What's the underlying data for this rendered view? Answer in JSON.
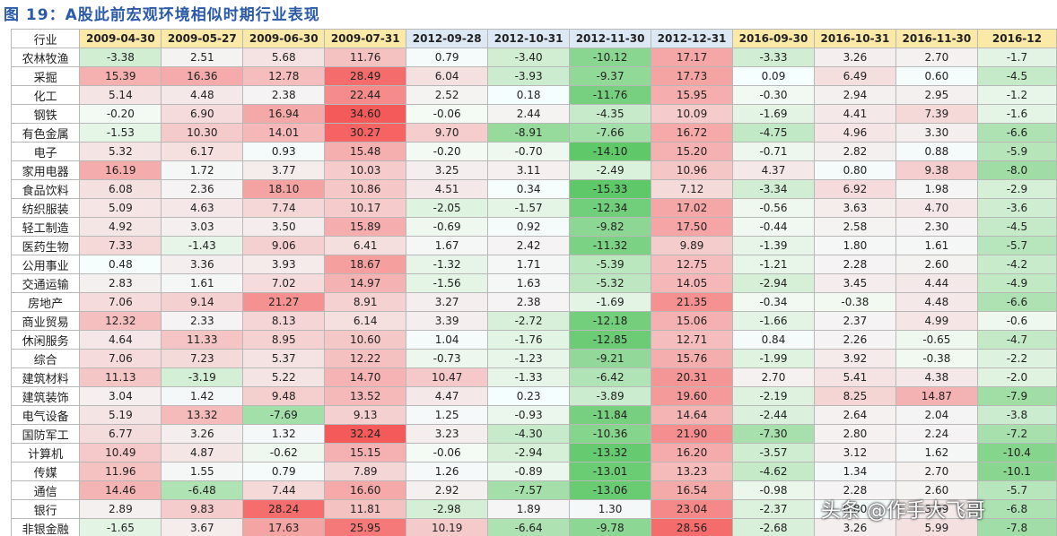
{
  "title": "图 19：A股此前宏观环境相似时期行业表现",
  "row_header": "行业",
  "watermark": "头条 @作手大飞哥",
  "colors": {
    "header_yellow": "#fbe9a8",
    "header_blue": "#dde8f5",
    "pos": "#e8413f",
    "neg": "#2f9e47"
  },
  "dates": [
    {
      "label": "2009-04-30",
      "group": "yellow"
    },
    {
      "label": "2009-05-27",
      "group": "yellow"
    },
    {
      "label": "2009-06-30",
      "group": "yellow"
    },
    {
      "label": "2009-07-31",
      "group": "yellow"
    },
    {
      "label": "2012-09-28",
      "group": "blue"
    },
    {
      "label": "2012-10-31",
      "group": "blue"
    },
    {
      "label": "2012-11-30",
      "group": "blue"
    },
    {
      "label": "2012-12-31",
      "group": "blue"
    },
    {
      "label": "2016-09-30",
      "group": "yellow"
    },
    {
      "label": "2016-10-31",
      "group": "yellow"
    },
    {
      "label": "2016-11-30",
      "group": "yellow"
    },
    {
      "label": "2016-12",
      "group": "yellow"
    }
  ],
  "rows": [
    {
      "name": "农林牧渔",
      "v": [
        "-3.38",
        "2.51",
        "5.68",
        "11.76",
        "0.79",
        "-3.40",
        "-10.12",
        "17.17",
        "-3.33",
        "3.26",
        "2.70",
        "-1.7"
      ]
    },
    {
      "name": "采掘",
      "v": [
        "15.39",
        "16.36",
        "12.78",
        "28.49",
        "6.04",
        "-3.93",
        "-9.37",
        "17.73",
        "0.09",
        "6.49",
        "0.60",
        "-4.5"
      ]
    },
    {
      "name": "化工",
      "v": [
        "5.14",
        "4.48",
        "2.38",
        "22.44",
        "2.52",
        "0.18",
        "-11.76",
        "15.95",
        "-0.30",
        "2.94",
        "2.95",
        "-1.2"
      ]
    },
    {
      "name": "钢铁",
      "v": [
        "-0.20",
        "6.90",
        "16.94",
        "34.60",
        "-0.06",
        "2.44",
        "-4.35",
        "10.09",
        "-1.69",
        "4.41",
        "7.39",
        "-1.6"
      ]
    },
    {
      "name": "有色金属",
      "v": [
        "-1.53",
        "10.30",
        "14.01",
        "30.27",
        "9.70",
        "-8.91",
        "-7.66",
        "16.72",
        "-4.75",
        "4.96",
        "3.30",
        "-6.6"
      ]
    },
    {
      "name": "电子",
      "v": [
        "5.32",
        "6.17",
        "0.93",
        "15.48",
        "-0.20",
        "-0.70",
        "-14.10",
        "15.20",
        "-0.71",
        "2.82",
        "0.88",
        "-5.9"
      ]
    },
    {
      "name": "家用电器",
      "v": [
        "16.19",
        "1.72",
        "3.77",
        "10.03",
        "3.25",
        "3.11",
        "-2.49",
        "10.96",
        "4.37",
        "0.80",
        "9.38",
        "-8.0"
      ]
    },
    {
      "name": "食品饮料",
      "v": [
        "6.08",
        "2.36",
        "18.10",
        "10.86",
        "4.51",
        "0.34",
        "-15.33",
        "7.12",
        "-3.34",
        "6.92",
        "1.98",
        "-2.9"
      ]
    },
    {
      "name": "纺织服装",
      "v": [
        "5.09",
        "4.63",
        "7.74",
        "10.17",
        "-2.05",
        "-1.57",
        "-12.34",
        "17.02",
        "-0.56",
        "3.63",
        "4.70",
        "-3.6"
      ]
    },
    {
      "name": "轻工制造",
      "v": [
        "4.92",
        "3.03",
        "3.50",
        "15.89",
        "-0.69",
        "0.92",
        "-9.82",
        "17.50",
        "-0.44",
        "2.58",
        "2.30",
        "-4.5"
      ]
    },
    {
      "name": "医药生物",
      "v": [
        "7.33",
        "-1.43",
        "9.06",
        "6.41",
        "1.67",
        "2.42",
        "-11.32",
        "9.89",
        "-1.39",
        "1.80",
        "1.61",
        "-5.7"
      ]
    },
    {
      "name": "公用事业",
      "v": [
        "0.48",
        "3.36",
        "3.93",
        "18.67",
        "-1.32",
        "1.71",
        "-5.39",
        "12.75",
        "-1.21",
        "2.28",
        "2.60",
        "-4.2"
      ]
    },
    {
      "name": "交通运输",
      "v": [
        "2.83",
        "1.61",
        "7.02",
        "14.97",
        "-1.56",
        "1.63",
        "-5.32",
        "14.05",
        "-2.94",
        "3.45",
        "4.44",
        "-4.9"
      ]
    },
    {
      "name": "房地产",
      "v": [
        "7.06",
        "9.14",
        "21.27",
        "8.91",
        "3.27",
        "2.38",
        "-1.69",
        "21.35",
        "-0.34",
        "-0.38",
        "4.48",
        "-6.6"
      ]
    },
    {
      "name": "商业贸易",
      "v": [
        "12.32",
        "2.33",
        "8.13",
        "6.14",
        "3.39",
        "-2.72",
        "-12.18",
        "15.06",
        "-1.66",
        "2.37",
        "4.99",
        "-0.6"
      ]
    },
    {
      "name": "休闲服务",
      "v": [
        "4.64",
        "11.33",
        "8.95",
        "10.60",
        "1.04",
        "-1.76",
        "-12.85",
        "12.71",
        "0.84",
        "2.26",
        "-0.65",
        "-4.7"
      ]
    },
    {
      "name": "综合",
      "v": [
        "7.06",
        "7.23",
        "5.37",
        "12.22",
        "-0.73",
        "-1.23",
        "-9.21",
        "15.76",
        "-1.99",
        "3.92",
        "-0.38",
        "-2.2"
      ]
    },
    {
      "name": "建筑材料",
      "v": [
        "11.13",
        "-3.19",
        "5.22",
        "14.70",
        "10.47",
        "-1.33",
        "-6.42",
        "20.31",
        "2.70",
        "5.41",
        "4.38",
        "-2.0"
      ]
    },
    {
      "name": "建筑装饰",
      "v": [
        "3.04",
        "1.42",
        "9.48",
        "13.52",
        "4.47",
        "0.23",
        "-3.89",
        "19.60",
        "-2.19",
        "8.25",
        "14.87",
        "-7.9"
      ]
    },
    {
      "name": "电气设备",
      "v": [
        "5.19",
        "13.32",
        "-7.69",
        "9.13",
        "1.25",
        "-0.93",
        "-11.84",
        "14.64",
        "-2.44",
        "2.64",
        "2.04",
        "-3.8"
      ]
    },
    {
      "name": "国防军工",
      "v": [
        "6.77",
        "3.26",
        "1.32",
        "32.24",
        "3.23",
        "-4.30",
        "-10.36",
        "21.90",
        "-7.30",
        "2.80",
        "2.24",
        "-7.2"
      ]
    },
    {
      "name": "计算机",
      "v": [
        "10.49",
        "4.87",
        "-0.62",
        "15.15",
        "-0.06",
        "-2.94",
        "-13.32",
        "16.20",
        "-3.57",
        "3.12",
        "1.62",
        "-10.4"
      ]
    },
    {
      "name": "传媒",
      "v": [
        "11.96",
        "1.55",
        "0.79",
        "7.89",
        "1.26",
        "-0.89",
        "-13.01",
        "13.23",
        "-4.62",
        "1.34",
        "2.70",
        "-10.1"
      ]
    },
    {
      "name": "通信",
      "v": [
        "14.46",
        "-6.48",
        "7.44",
        "16.60",
        "2.92",
        "-7.57",
        "-13.06",
        "16.54",
        "-0.98",
        "2.28",
        "2.60",
        "-5.7"
      ]
    },
    {
      "name": "银行",
      "v": [
        "2.89",
        "9.83",
        "28.24",
        "11.81",
        "-2.98",
        "1.89",
        "1.30",
        "23.04",
        "-2.37",
        "0.80",
        "3.99",
        "-6.8"
      ]
    },
    {
      "name": "非银金融",
      "v": [
        "-1.65",
        "3.67",
        "17.63",
        "25.95",
        "10.19",
        "-6.64",
        "-9.78",
        "28.56",
        "-2.68",
        "3.26",
        "5.99",
        "-7.8"
      ]
    }
  ]
}
